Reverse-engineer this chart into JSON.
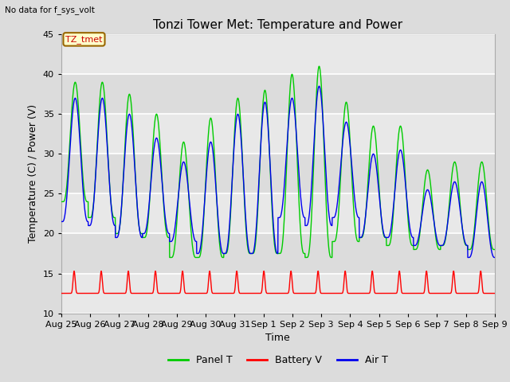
{
  "title": "Tonzi Tower Met: Temperature and Power",
  "ylabel": "Temperature (C) / Power (V)",
  "xlabel": "Time",
  "top_label": "No data for f_sys_volt",
  "annotation_label": "TZ_tmet",
  "ylim": [
    10,
    45
  ],
  "yticks": [
    10,
    15,
    20,
    25,
    30,
    35,
    40,
    45
  ],
  "x_tick_labels": [
    "Aug 25",
    "Aug 26",
    "Aug 27",
    "Aug 28",
    "Aug 29",
    "Aug 30",
    "Aug 31",
    "Sep 1",
    "Sep 2",
    "Sep 3",
    "Sep 4",
    "Sep 5",
    "Sep 6",
    "Sep 7",
    "Sep 8",
    "Sep 9"
  ],
  "panel_t_color": "#00CC00",
  "battery_v_color": "#FF0000",
  "air_t_color": "#0000EE",
  "fig_bg_color": "#DCDCDC",
  "plot_bg_color": "#E8E8E8",
  "band_light_color": "#F0F0F0",
  "band_dark_color": "#E0E0E0",
  "grid_color": "#FFFFFF",
  "title_fontsize": 11,
  "axis_label_fontsize": 9,
  "tick_label_fontsize": 8,
  "legend_fontsize": 9
}
